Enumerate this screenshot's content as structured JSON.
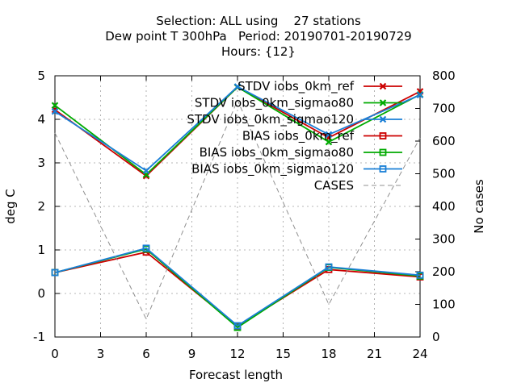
{
  "title_lines": [
    "Selection: ALL using    27 stations",
    "Dew point T 300hPa   Period: 20190701-20190729",
    "Hours: {12}"
  ],
  "chart_data": {
    "type": "line",
    "xlabel": "Forecast length",
    "ylabel": "deg C",
    "y2label": "No cases",
    "x": [
      0,
      6,
      12,
      18,
      24
    ],
    "xlim": [
      0,
      24
    ],
    "xticks": [
      0,
      3,
      6,
      9,
      12,
      15,
      18,
      21,
      24
    ],
    "ylim": [
      -1,
      5
    ],
    "yticks": [
      -1,
      0,
      1,
      2,
      3,
      4,
      5
    ],
    "y2lim": [
      0,
      800
    ],
    "y2ticks": [
      0,
      100,
      200,
      300,
      400,
      500,
      600,
      700,
      800
    ],
    "grid": true,
    "legend_position": "top-right",
    "series": [
      {
        "name": "STDV iobs_0km_ref",
        "axis": "y",
        "marker": "x",
        "color": "#cc0000",
        "values": [
          4.22,
          2.7,
          4.74,
          3.58,
          4.64
        ]
      },
      {
        "name": "STDV iobs_0km_sigmao80",
        "axis": "y",
        "marker": "x",
        "color": "#00aa00",
        "values": [
          4.32,
          2.73,
          4.74,
          3.48,
          4.57
        ]
      },
      {
        "name": "STDV iobs_0km_sigmao120",
        "axis": "y",
        "marker": "x",
        "color": "#1a7fd6",
        "values": [
          4.18,
          2.82,
          4.75,
          3.65,
          4.56
        ]
      },
      {
        "name": "BIAS iobs_0km_ref",
        "axis": "y",
        "marker": "square",
        "color": "#cc0000",
        "values": [
          0.48,
          0.95,
          -0.75,
          0.55,
          0.38
        ]
      },
      {
        "name": "BIAS iobs_0km_sigmao80",
        "axis": "y",
        "marker": "square",
        "color": "#00aa00",
        "values": [
          0.48,
          1.02,
          -0.78,
          0.6,
          0.4
        ]
      },
      {
        "name": "BIAS iobs_0km_sigmao120",
        "axis": "y",
        "marker": "square",
        "color": "#1a7fd6",
        "values": [
          0.48,
          1.04,
          -0.74,
          0.61,
          0.42
        ]
      },
      {
        "name": "CASES",
        "axis": "y2",
        "marker": "none",
        "color": "#909090",
        "dashed": true,
        "values": [
          625,
          55,
          725,
          100,
          610
        ]
      }
    ]
  }
}
